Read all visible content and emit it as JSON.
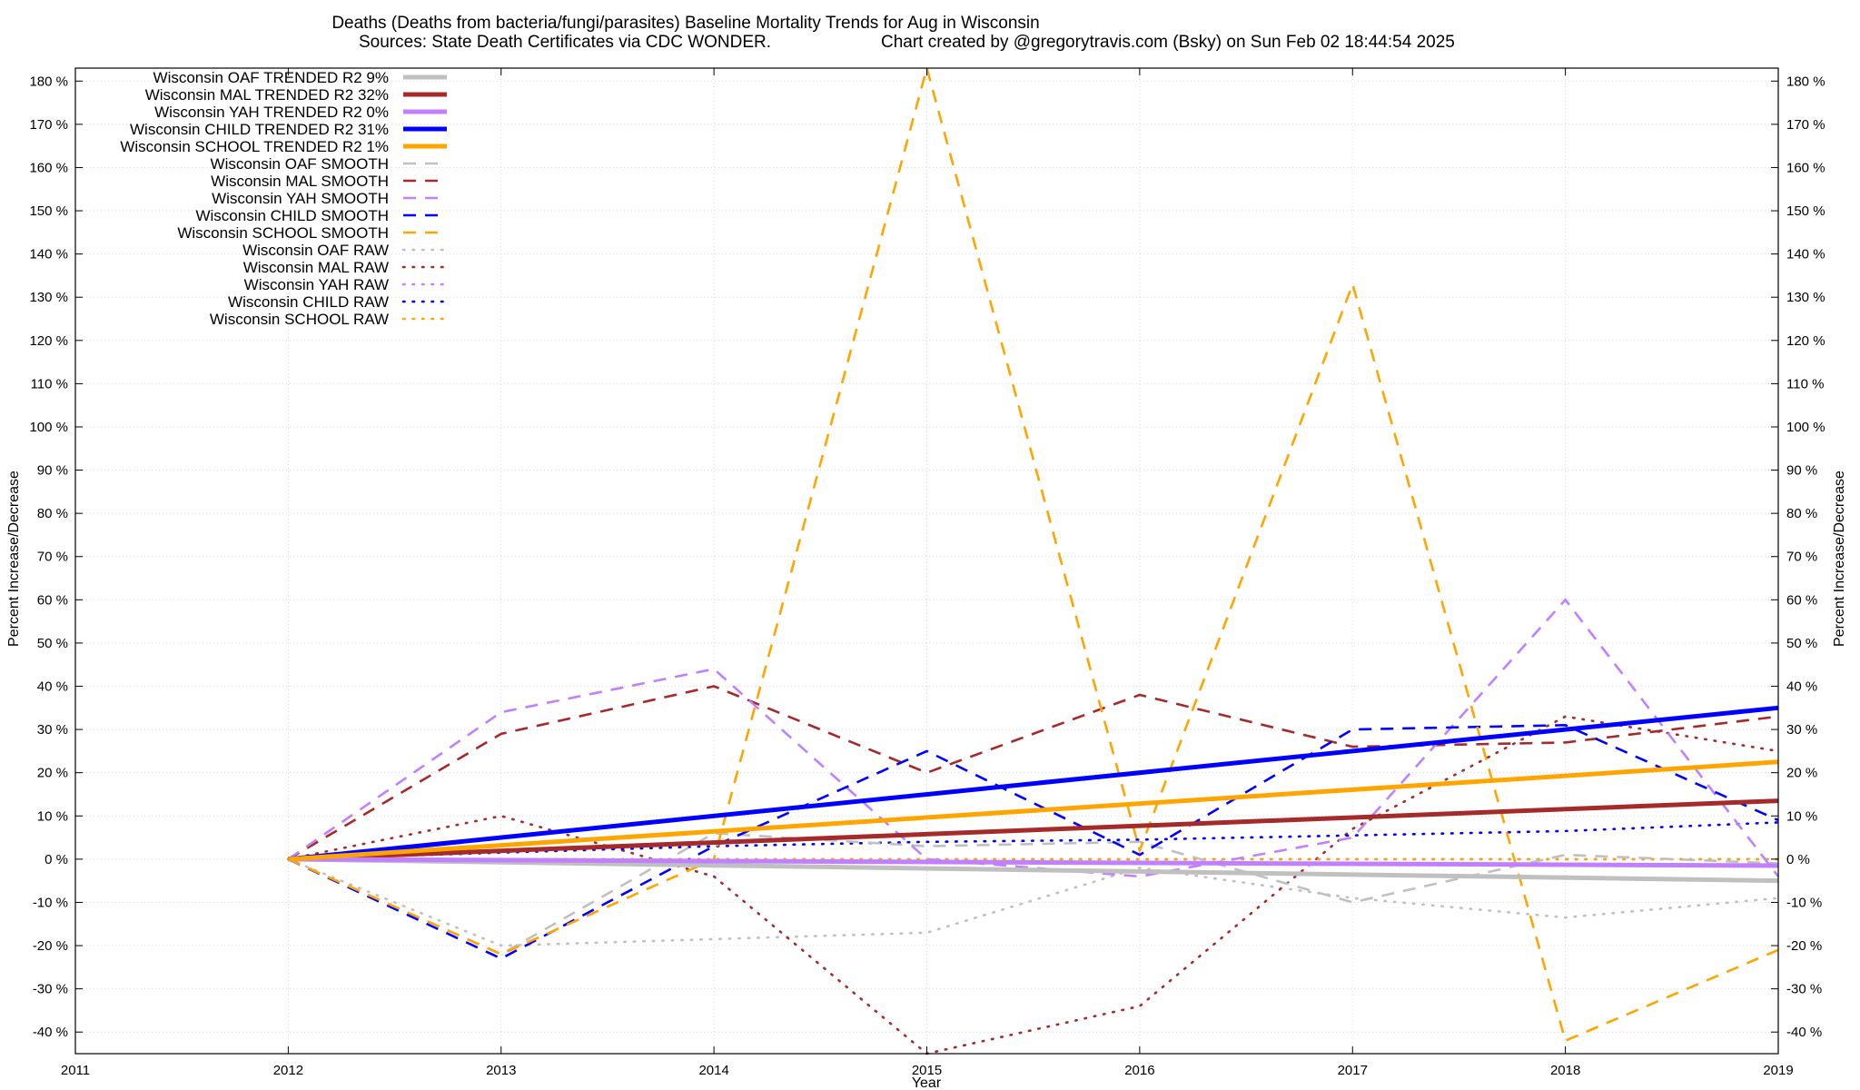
{
  "chart_data": {
    "type": "line",
    "title_line1": "Deaths (Deaths from bacteria/fungi/parasites)  Baseline Mortality Trends for Aug in Wisconsin",
    "title_line2_left": "Sources: State Death Certificates via CDC WONDER.",
    "title_line2_right": "Chart created by @gregorytravis.com (Bsky) on Sun Feb 02 18:44:54 2025",
    "xlabel": "Year",
    "ylabel_left": "Percent Increase/Decrease",
    "ylabel_right": "Percent Increase/Decrease",
    "xlim": [
      2011,
      2019
    ],
    "ylim": [
      -45,
      183
    ],
    "x_ticks": [
      "2011",
      "2012",
      "2013",
      "2014",
      "2015",
      "2016",
      "2017",
      "2018",
      "2019"
    ],
    "y_ticks": [
      {
        "v": -40,
        "label": "-40 %"
      },
      {
        "v": -30,
        "label": "-30 %"
      },
      {
        "v": -20,
        "label": "-20 %"
      },
      {
        "v": -10,
        "label": "-10 %"
      },
      {
        "v": 0,
        "label": "0 %"
      },
      {
        "v": 10,
        "label": "10 %"
      },
      {
        "v": 20,
        "label": "20 %"
      },
      {
        "v": 30,
        "label": "30 %"
      },
      {
        "v": 40,
        "label": "40 %"
      },
      {
        "v": 50,
        "label": "50 %"
      },
      {
        "v": 60,
        "label": "60 %"
      },
      {
        "v": 70,
        "label": "70 %"
      },
      {
        "v": 80,
        "label": "80 %"
      },
      {
        "v": 90,
        "label": "90 %"
      },
      {
        "v": 100,
        "label": "100 %"
      },
      {
        "v": 110,
        "label": "110 %"
      },
      {
        "v": 120,
        "label": "120 %"
      },
      {
        "v": 130,
        "label": "130 %"
      },
      {
        "v": 140,
        "label": "140 %"
      },
      {
        "v": 150,
        "label": "150 %"
      },
      {
        "v": 160,
        "label": "160 %"
      },
      {
        "v": 170,
        "label": "170 %"
      },
      {
        "v": 180,
        "label": "180 %"
      }
    ],
    "grid": true,
    "legend_position": "top-left",
    "series": [
      {
        "name": "Wisconsin OAF TRENDED R2",
        "r2": "9%",
        "style": "solid",
        "color": "#c0c0c0",
        "x": [
          2012,
          2019
        ],
        "y": [
          0,
          -5
        ]
      },
      {
        "name": "Wisconsin MAL TRENDED R2",
        "r2": "32%",
        "style": "solid",
        "color": "#a52a2a",
        "x": [
          2012,
          2019
        ],
        "y": [
          0,
          13.5
        ]
      },
      {
        "name": "Wisconsin YAH TRENDED R2",
        "r2": "0%",
        "style": "solid",
        "color": "#c080ff",
        "x": [
          2012,
          2019
        ],
        "y": [
          0,
          -1.5
        ]
      },
      {
        "name": "Wisconsin CHILD TRENDED R2",
        "r2": "31%",
        "style": "solid",
        "color": "#0000ff",
        "x": [
          2012,
          2019
        ],
        "y": [
          0,
          35
        ]
      },
      {
        "name": "Wisconsin SCHOOL TRENDED R2",
        "r2": "1%",
        "style": "solid",
        "color": "#ffa500",
        "x": [
          2012,
          2019
        ],
        "y": [
          0,
          22.5
        ]
      },
      {
        "name": "Wisconsin OAF SMOOTH",
        "r2": "",
        "style": "dash",
        "color": "#c0c0c0",
        "x": [
          2012,
          2013,
          2014,
          2015,
          2016,
          2017,
          2018,
          2019
        ],
        "y": [
          0,
          -22,
          6,
          3,
          4,
          -10,
          1,
          -1
        ]
      },
      {
        "name": "Wisconsin MAL SMOOTH",
        "r2": "",
        "style": "dash",
        "color": "#a52a2a",
        "x": [
          2012,
          2013,
          2014,
          2015,
          2016,
          2017,
          2018,
          2019
        ],
        "y": [
          0,
          29,
          40,
          20,
          38,
          26,
          27,
          33
        ]
      },
      {
        "name": "Wisconsin YAH SMOOTH",
        "r2": "",
        "style": "dash",
        "color": "#c080ff",
        "x": [
          2012,
          2013,
          2014,
          2015,
          2016,
          2017,
          2018,
          2019
        ],
        "y": [
          0,
          34,
          44,
          0,
          -4,
          5,
          60,
          -4
        ]
      },
      {
        "name": "Wisconsin CHILD SMOOTH",
        "r2": "",
        "style": "dash",
        "color": "#0000ff",
        "x": [
          2012,
          2013,
          2014,
          2015,
          2016,
          2017,
          2018,
          2019
        ],
        "y": [
          0,
          -23,
          3,
          25,
          1,
          30,
          31,
          9
        ]
      },
      {
        "name": "Wisconsin SCHOOL SMOOTH",
        "r2": "",
        "style": "dash",
        "color": "#ffa500",
        "x": [
          2012,
          2013,
          2014,
          2015,
          2016,
          2017,
          2018,
          2019
        ],
        "y": [
          0,
          -22,
          0,
          183,
          2,
          133,
          -42,
          -21
        ]
      },
      {
        "name": "Wisconsin OAF RAW",
        "r2": "",
        "style": "dot",
        "color": "#c0c0c0",
        "x": [
          2012,
          2013,
          2014,
          2015,
          2016,
          2017,
          2018,
          2019
        ],
        "y": [
          0,
          -20,
          -18.5,
          -17,
          -2,
          -9,
          -13.5,
          -9
        ]
      },
      {
        "name": "Wisconsin MAL RAW",
        "r2": "",
        "style": "dot",
        "color": "#a52a2a",
        "x": [
          2012,
          2013,
          2014,
          2015,
          2016,
          2017,
          2018,
          2019
        ],
        "y": [
          0,
          10,
          -4,
          -45,
          -34,
          7,
          33,
          25
        ]
      },
      {
        "name": "Wisconsin YAH RAW",
        "r2": "",
        "style": "dot",
        "color": "#c080ff",
        "x": [
          2012,
          2013,
          2014,
          2015,
          2016,
          2017,
          2018,
          2019
        ],
        "y": [
          0,
          0,
          0,
          0,
          0,
          0,
          0,
          0
        ]
      },
      {
        "name": "Wisconsin CHILD RAW",
        "r2": "",
        "style": "dot",
        "color": "#0000ff",
        "x": [
          2012,
          2013,
          2014,
          2015,
          2016,
          2017,
          2018,
          2019
        ],
        "y": [
          0,
          1.5,
          3,
          4,
          4.5,
          5.5,
          6.5,
          8.5
        ]
      },
      {
        "name": "Wisconsin SCHOOL RAW",
        "r2": "",
        "style": "dot",
        "color": "#ffa500",
        "x": [
          2012,
          2013,
          2014,
          2015,
          2016,
          2017,
          2018,
          2019
        ],
        "y": [
          0,
          0,
          0,
          0,
          0,
          0,
          0,
          0
        ]
      }
    ]
  }
}
